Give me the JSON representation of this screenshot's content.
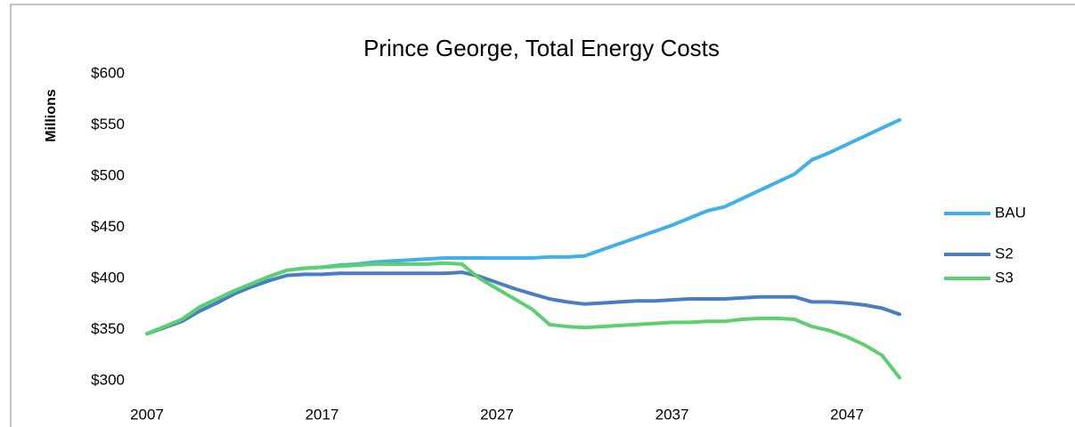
{
  "chart_data": {
    "type": "line",
    "title": "Prince George, Total Energy Costs",
    "y_label": "Millions",
    "x": [
      2007,
      2008,
      2009,
      2010,
      2011,
      2012,
      2013,
      2014,
      2015,
      2016,
      2017,
      2018,
      2019,
      2020,
      2021,
      2022,
      2023,
      2024,
      2025,
      2026,
      2027,
      2028,
      2029,
      2030,
      2031,
      2032,
      2033,
      2034,
      2035,
      2036,
      2037,
      2038,
      2039,
      2040,
      2041,
      2042,
      2043,
      2044,
      2045,
      2046,
      2047,
      2048,
      2049,
      2050
    ],
    "series": [
      {
        "name": "BAU",
        "color": "#3fb0e8",
        "values": [
          346,
          352,
          360,
          372,
          380,
          388,
          395,
          402,
          408,
          410,
          411,
          413,
          414,
          416,
          417,
          418,
          419,
          420,
          420,
          420,
          420,
          420,
          420,
          421,
          421,
          422,
          428,
          434,
          440,
          446,
          452,
          459,
          466,
          470,
          478,
          486,
          494,
          502,
          516,
          523,
          531,
          539,
          547,
          555
        ]
      },
      {
        "name": "S2",
        "color": "#4a7ec4",
        "values": [
          346,
          352,
          358,
          368,
          376,
          385,
          392,
          398,
          403,
          404,
          404,
          405,
          405,
          405,
          405,
          405,
          405,
          405,
          406,
          402,
          396,
          390,
          385,
          380,
          377,
          375,
          376,
          377,
          378,
          378,
          379,
          380,
          380,
          380,
          381,
          382,
          382,
          382,
          377,
          377,
          376,
          374,
          371,
          365
        ]
      },
      {
        "name": "S3",
        "color": "#5ccf6f",
        "values": [
          346,
          353,
          360,
          372,
          380,
          388,
          395,
          402,
          408,
          410,
          411,
          412,
          413,
          414,
          414,
          414,
          414,
          415,
          414,
          400,
          390,
          380,
          370,
          355,
          353,
          352,
          353,
          354,
          355,
          356,
          357,
          357,
          358,
          358,
          360,
          361,
          361,
          360,
          353,
          349,
          343,
          335,
          325,
          303
        ]
      }
    ],
    "xlim": [
      2007,
      2050
    ],
    "xticks": [
      2007,
      2017,
      2027,
      2037,
      2047
    ],
    "ylim": [
      300,
      600
    ],
    "yticks": [
      {
        "value": 300,
        "label": "$300"
      },
      {
        "value": 350,
        "label": "$350"
      },
      {
        "value": 400,
        "label": "$400"
      },
      {
        "value": 450,
        "label": "$450"
      },
      {
        "value": 500,
        "label": "$500"
      },
      {
        "value": 550,
        "label": "$550"
      },
      {
        "value": 600,
        "label": "$600"
      }
    ],
    "legend": "right"
  }
}
